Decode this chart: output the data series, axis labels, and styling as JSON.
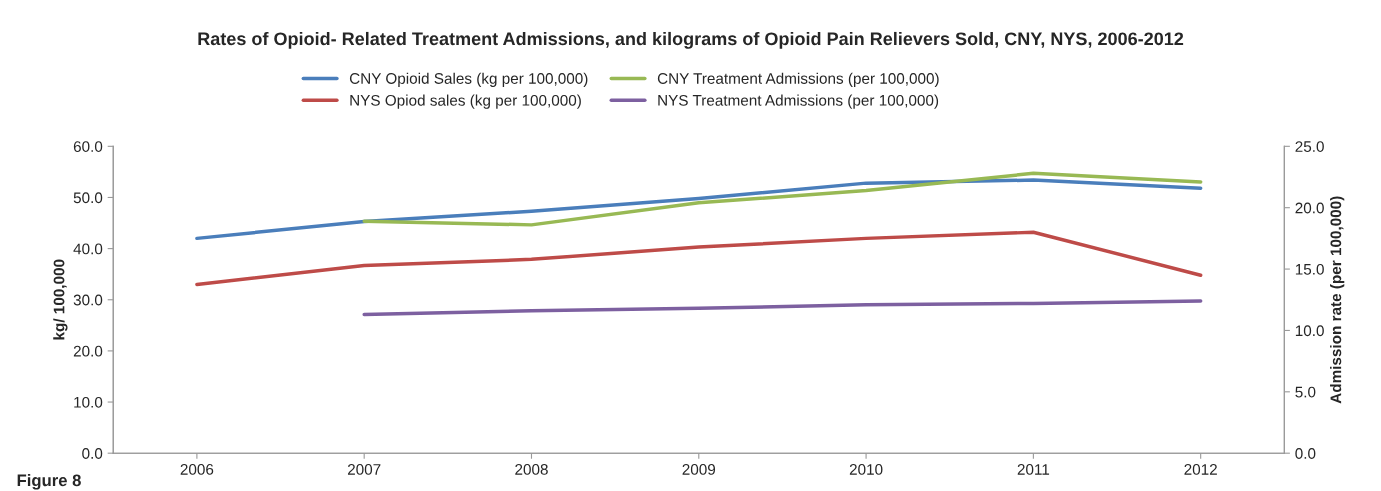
{
  "chart_data": {
    "type": "line",
    "title": "Rates of Opioid- Related Treatment Admissions, and kilograms of Opioid Pain Relievers Sold, CNY, NYS, 2006-2012",
    "ylabel": "kg/ 100,000",
    "y2label": "Admission rate (per 100,000)",
    "categories": [
      "2006",
      "2007",
      "2008",
      "2009",
      "2010",
      "2011",
      "2012"
    ],
    "series": [
      {
        "name": "CNY Opioid Sales (kg per 100,000)",
        "color": "#4a7ebb",
        "values": [
          42.0,
          45.3,
          47.3,
          49.8,
          52.8,
          53.4,
          51.8
        ]
      },
      {
        "name": "NYS Opiod sales (kg per 100,000)",
        "color": "#be4b48",
        "values": [
          33.0,
          36.7,
          37.9,
          40.3,
          42.0,
          43.2,
          34.8
        ]
      },
      {
        "name": "CNY Treatment Admissions (per 100,000)",
        "color": "#98b954",
        "axis": "y2",
        "values": [
          null,
          18.9,
          18.6,
          20.4,
          21.4,
          22.8,
          22.1
        ]
      },
      {
        "name": "NYS Treatment Admissions (per 100,000)",
        "color": "#7d60a0",
        "axis": "y2",
        "values": [
          null,
          11.3,
          11.6,
          11.8,
          12.1,
          12.2,
          12.4
        ]
      }
    ],
    "ylim": [
      0,
      60
    ],
    "yticks": [
      {
        "value": 0,
        "label": "0.0"
      },
      {
        "value": 10,
        "label": "10.0"
      },
      {
        "value": 20,
        "label": "20.0"
      },
      {
        "value": 30,
        "label": "30.0"
      },
      {
        "value": 40,
        "label": "40.0"
      },
      {
        "value": 50,
        "label": "50.0"
      },
      {
        "value": 60,
        "label": "60.0"
      }
    ],
    "y2lim": [
      0,
      25
    ],
    "y2ticks": [
      {
        "value": 0,
        "label": "0.0"
      },
      {
        "value": 5,
        "label": "5.0"
      },
      {
        "value": 10,
        "label": "10.0"
      },
      {
        "value": 15,
        "label": "15.0"
      },
      {
        "value": 20,
        "label": "20.0"
      },
      {
        "value": 25,
        "label": "25.0"
      }
    ],
    "annotations": [
      "Figure 8"
    ],
    "legend": "top",
    "grid": false,
    "marker": "none",
    "line_style": "solid"
  }
}
